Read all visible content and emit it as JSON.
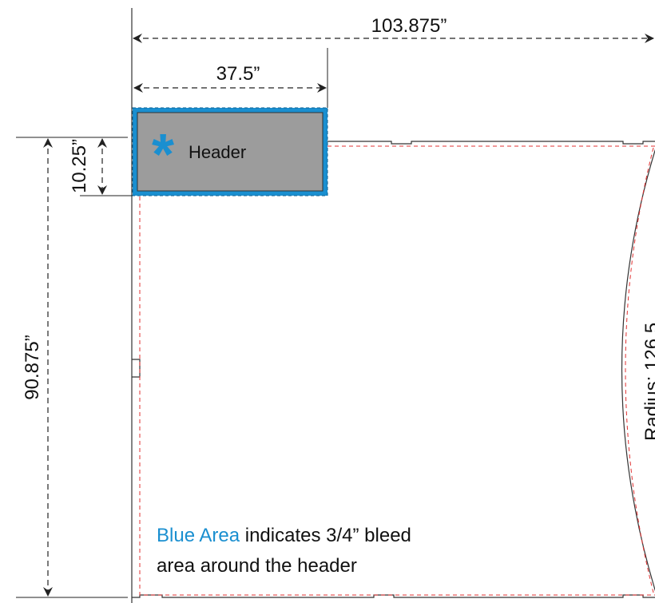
{
  "dimensions": {
    "total_width": "103.875”",
    "header_width": "37.5”",
    "header_height": "10.25”",
    "total_height": "90.875”",
    "radius": "Radius: 126.5"
  },
  "header": {
    "marker": "*",
    "label": "Header"
  },
  "note": {
    "highlight": "Blue Area",
    "line1": " indicates 3/4” bleed",
    "line2": "area around the header"
  }
}
